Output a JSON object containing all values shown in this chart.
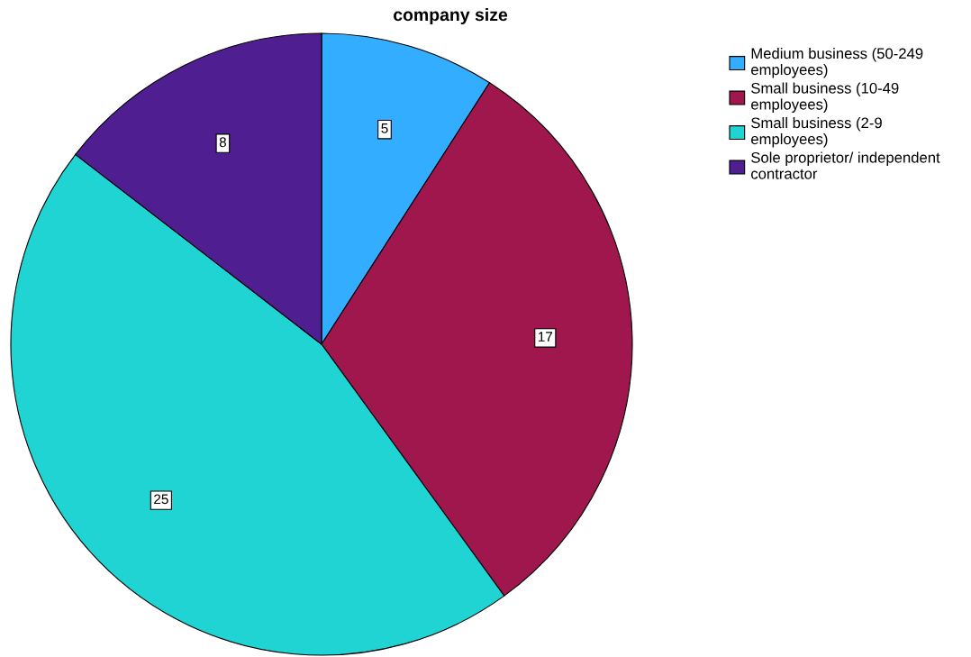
{
  "chart_data": {
    "type": "pie",
    "title": "company size",
    "categories": [
      "Medium business (50-249 employees)",
      "Small business (10-49 employees)",
      "Small business (2-9 employees)",
      "Sole proprietor/ independent contractor"
    ],
    "values": [
      5,
      17,
      25,
      8
    ],
    "colors": [
      "#33adff",
      "#a0174d",
      "#21d4d4",
      "#4f1f91"
    ],
    "data_labels": true,
    "legend": "top right"
  }
}
